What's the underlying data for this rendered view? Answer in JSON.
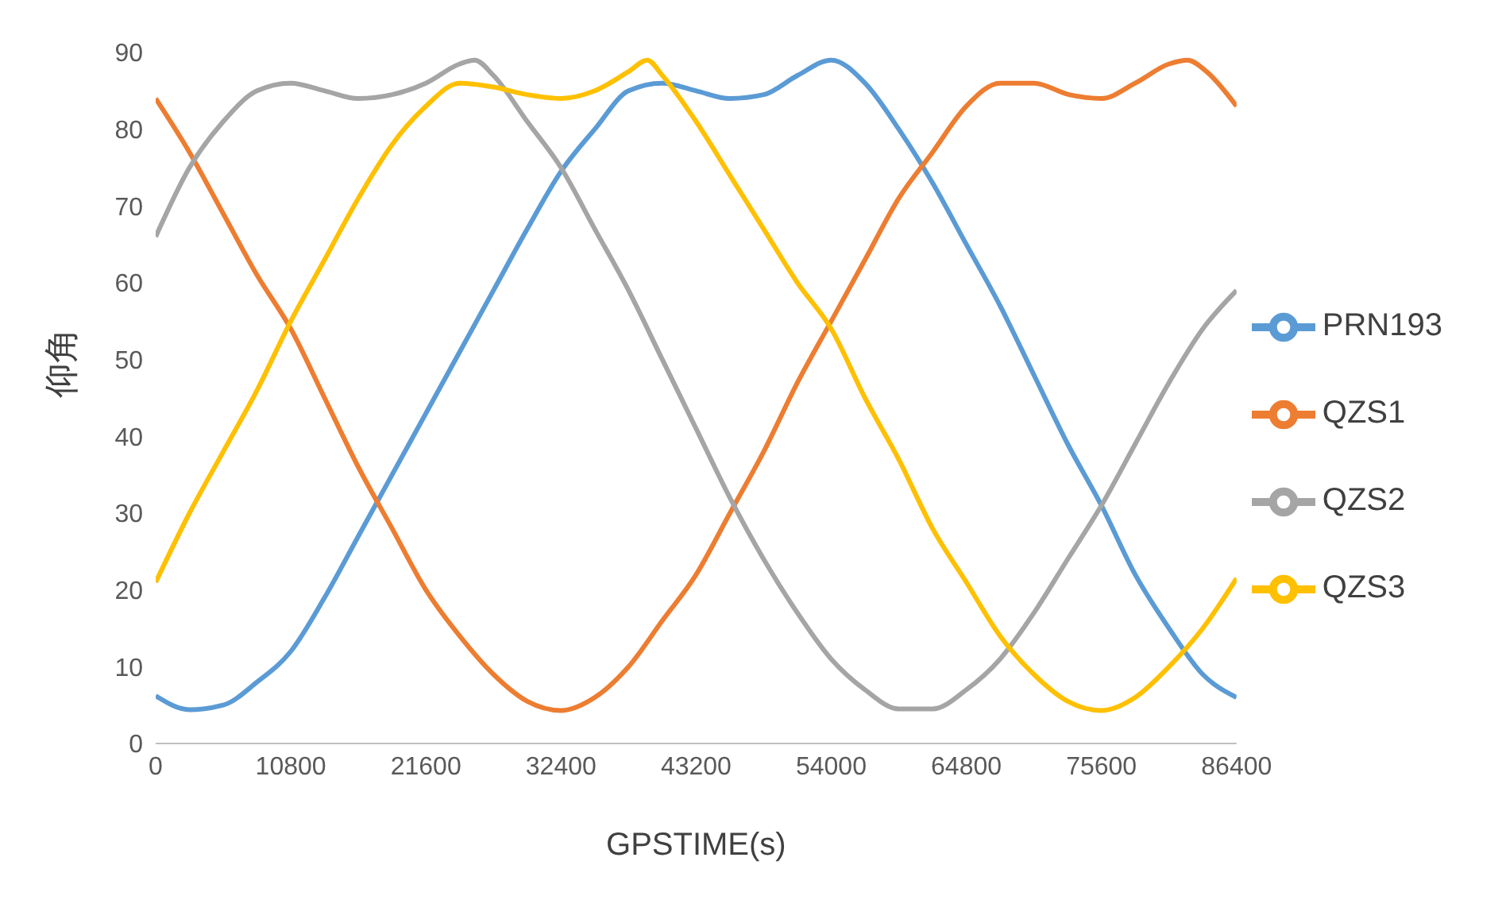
{
  "chart_data": {
    "type": "line",
    "xlabel": "GPSTIME(s)",
    "ylabel": "仰角",
    "xlim": [
      0,
      86400
    ],
    "xticks": [
      0,
      10800,
      21600,
      32400,
      43200,
      54000,
      64800,
      75600,
      86400
    ],
    "ylim": [
      0,
      90
    ],
    "yticks": [
      0,
      10,
      20,
      30,
      40,
      50,
      60,
      70,
      80,
      90
    ],
    "grid": false,
    "legend": "right",
    "marker": "none",
    "line_style": "solid",
    "series": [
      {
        "name": "PRN193",
        "color": "#5b9bd5",
        "x": [
          0,
          2700,
          5400,
          8100,
          10800,
          13500,
          16200,
          18900,
          21600,
          24300,
          27000,
          29700,
          32400,
          35100,
          37800,
          40500,
          43200,
          45900,
          48600,
          51300,
          54000,
          56700,
          59400,
          62100,
          64800,
          67500,
          70200,
          72900,
          75600,
          78300,
          81000,
          83700,
          86400
        ],
        "values": [
          6.2,
          4.4,
          5,
          8,
          12,
          19,
          27,
          35,
          43,
          51,
          59,
          67,
          74.5,
          80,
          85,
          86,
          85,
          84,
          84.5,
          87,
          89,
          86,
          80,
          73,
          65,
          57,
          48,
          39,
          31,
          22,
          15,
          9,
          6
        ]
      },
      {
        "name": "QZS1",
        "color": "#ed7d31",
        "x": [
          0,
          2700,
          5400,
          8100,
          10800,
          13500,
          16200,
          18900,
          21600,
          24300,
          27000,
          29700,
          32400,
          35100,
          37800,
          40500,
          43200,
          45900,
          48600,
          51300,
          54000,
          56700,
          59400,
          62100,
          64800,
          67500,
          70200,
          73000,
          75600,
          78300,
          81000,
          82500,
          84000,
          86400
        ],
        "values": [
          84,
          77,
          69,
          61,
          54,
          45,
          36,
          28,
          20,
          14,
          9,
          5.5,
          4.3,
          6,
          10,
          16,
          22,
          30,
          38,
          47,
          55,
          63,
          71,
          77,
          83,
          86,
          86,
          84.5,
          84,
          86,
          88.5,
          89,
          87.5,
          83
        ]
      },
      {
        "name": "QZS2",
        "color": "#a5a5a5",
        "x": [
          0,
          2700,
          5400,
          8100,
          10800,
          13500,
          16200,
          18900,
          21600,
          24300,
          25500,
          27000,
          29700,
          32400,
          35100,
          37800,
          40500,
          43200,
          45900,
          48600,
          51300,
          54000,
          56700,
          59400,
          62100,
          64800,
          67500,
          70200,
          72900,
          75600,
          78300,
          81000,
          83700,
          86400
        ],
        "values": [
          66,
          75,
          81,
          85,
          86,
          85,
          84,
          84.5,
          86,
          88.5,
          89,
          87,
          81,
          75,
          67,
          59,
          50,
          41,
          32,
          24,
          17,
          11,
          7,
          4.5,
          4.5,
          7,
          11,
          17,
          24,
          31,
          39,
          47,
          54,
          59
        ]
      },
      {
        "name": "QZS3",
        "color": "#ffc000",
        "x": [
          0,
          2700,
          5400,
          8100,
          10800,
          13500,
          16200,
          18900,
          21600,
          24300,
          27000,
          29700,
          32400,
          35100,
          37800,
          39300,
          40500,
          43200,
          45900,
          48600,
          51300,
          54000,
          56700,
          59400,
          62100,
          64800,
          67500,
          70200,
          72900,
          75600,
          78300,
          81000,
          83700,
          86400
        ],
        "values": [
          21,
          30,
          38,
          46,
          55,
          63,
          71,
          78,
          83,
          86,
          85.5,
          84.5,
          84,
          85,
          87.5,
          89,
          87,
          81,
          74,
          67,
          60,
          54,
          45,
          37,
          28,
          21,
          14,
          9,
          5.5,
          4.3,
          6,
          10,
          15,
          21.5
        ]
      }
    ]
  }
}
